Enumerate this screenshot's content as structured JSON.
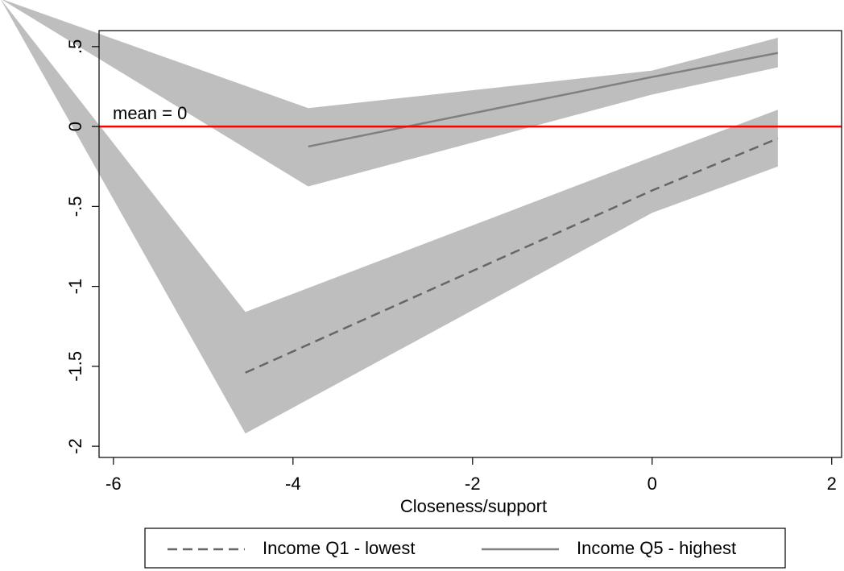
{
  "chart_data": {
    "type": "line",
    "xlabel": "Closeness/support",
    "xlim": [
      -6.16,
      2.11
    ],
    "ylim": [
      -2.07,
      0.6
    ],
    "xticks": [
      -6,
      -4,
      -2,
      0,
      2
    ],
    "yticks": [
      -2,
      -1.5,
      -1,
      {
        "value": -0.5,
        "label": "-.5"
      },
      0,
      {
        "value": 0.5,
        "label": ".5"
      }
    ],
    "reference_line": {
      "value": 0,
      "label": "mean = 0",
      "color": "#ff0000"
    },
    "band_color": "#bebebe",
    "series": [
      {
        "name": "Income Q1 - lowest",
        "color": "#666666",
        "dash": true,
        "x": [
          -4.53,
          0,
          1.4
        ],
        "values": [
          -1.54,
          -0.4,
          -0.075
        ],
        "band": {
          "x": [
            -7.26,
            -4.53,
            0,
            1.4
          ],
          "upper": [
            0.8,
            -1.16,
            -0.19,
            0.105
          ],
          "lower": [
            0.8,
            -1.92,
            -0.54,
            -0.25
          ]
        }
      },
      {
        "name": "Income Q5 - highest",
        "color": "#808080",
        "dash": false,
        "x": [
          -3.83,
          0,
          1.4
        ],
        "values": [
          -0.125,
          0.31,
          0.46
        ],
        "band": {
          "x": [
            -7.26,
            -3.83,
            0,
            1.4
          ],
          "upper": [
            0.8,
            0.115,
            0.35,
            0.555
          ],
          "lower": [
            0.8,
            -0.375,
            0.2,
            0.37
          ]
        }
      }
    ]
  }
}
